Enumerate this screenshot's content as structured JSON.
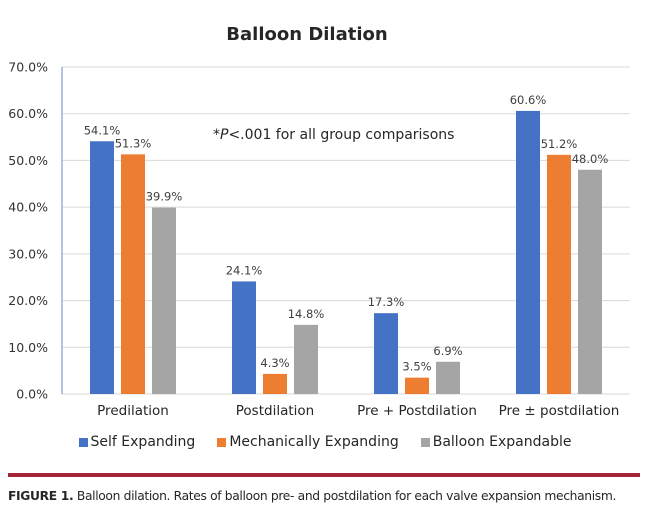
{
  "chart_data": {
    "type": "bar",
    "title": "Balloon Dilation",
    "xlabel": "",
    "ylabel": "",
    "ylim": [
      0,
      70
    ],
    "yticks": [
      "0.0%",
      "10.0%",
      "20.0%",
      "30.0%",
      "40.0%",
      "50.0%",
      "60.0%",
      "70.0%"
    ],
    "ytick_values": [
      0,
      10,
      20,
      30,
      40,
      50,
      60,
      70
    ],
    "grid": true,
    "legend_position": "bottom",
    "categories": [
      "Predilation",
      "Postdilation",
      "Pre + Postdilation",
      "Pre ± postdilation"
    ],
    "series": [
      {
        "name": "Self Expanding",
        "color": "#4472c4",
        "values": [
          54.1,
          24.1,
          17.3,
          60.6
        ],
        "labels": [
          "54.1%",
          "24.1%",
          "17.3%",
          "60.6%"
        ]
      },
      {
        "name": "Mechanically Expanding",
        "color": "#ed7d31",
        "values": [
          51.3,
          4.3,
          3.5,
          51.2
        ],
        "labels": [
          "51.3%",
          "4.3%",
          "3.5%",
          "51.2%"
        ]
      },
      {
        "name": "Balloon Expandable",
        "color": "#a5a5a5",
        "values": [
          39.9,
          14.8,
          6.9,
          48.0
        ],
        "labels": [
          "39.9%",
          "14.8%",
          "6.9%",
          "48.0%"
        ]
      }
    ],
    "annotation": {
      "prefix": "*",
      "italic": "P",
      "rest": "<.001 for all group comparisons"
    }
  },
  "legend": [
    {
      "label": "Self Expanding",
      "color": "#4472c4"
    },
    {
      "label": "Mechanically Expanding",
      "color": "#ed7d31"
    },
    {
      "label": "Balloon Expandable",
      "color": "#a5a5a5"
    }
  ],
  "rule_color": "#a52438",
  "caption": {
    "figure_label": "FIGURE 1.",
    "text": " Balloon dilation. Rates of balloon pre- and postdilation for each valve expansion mechanism."
  }
}
